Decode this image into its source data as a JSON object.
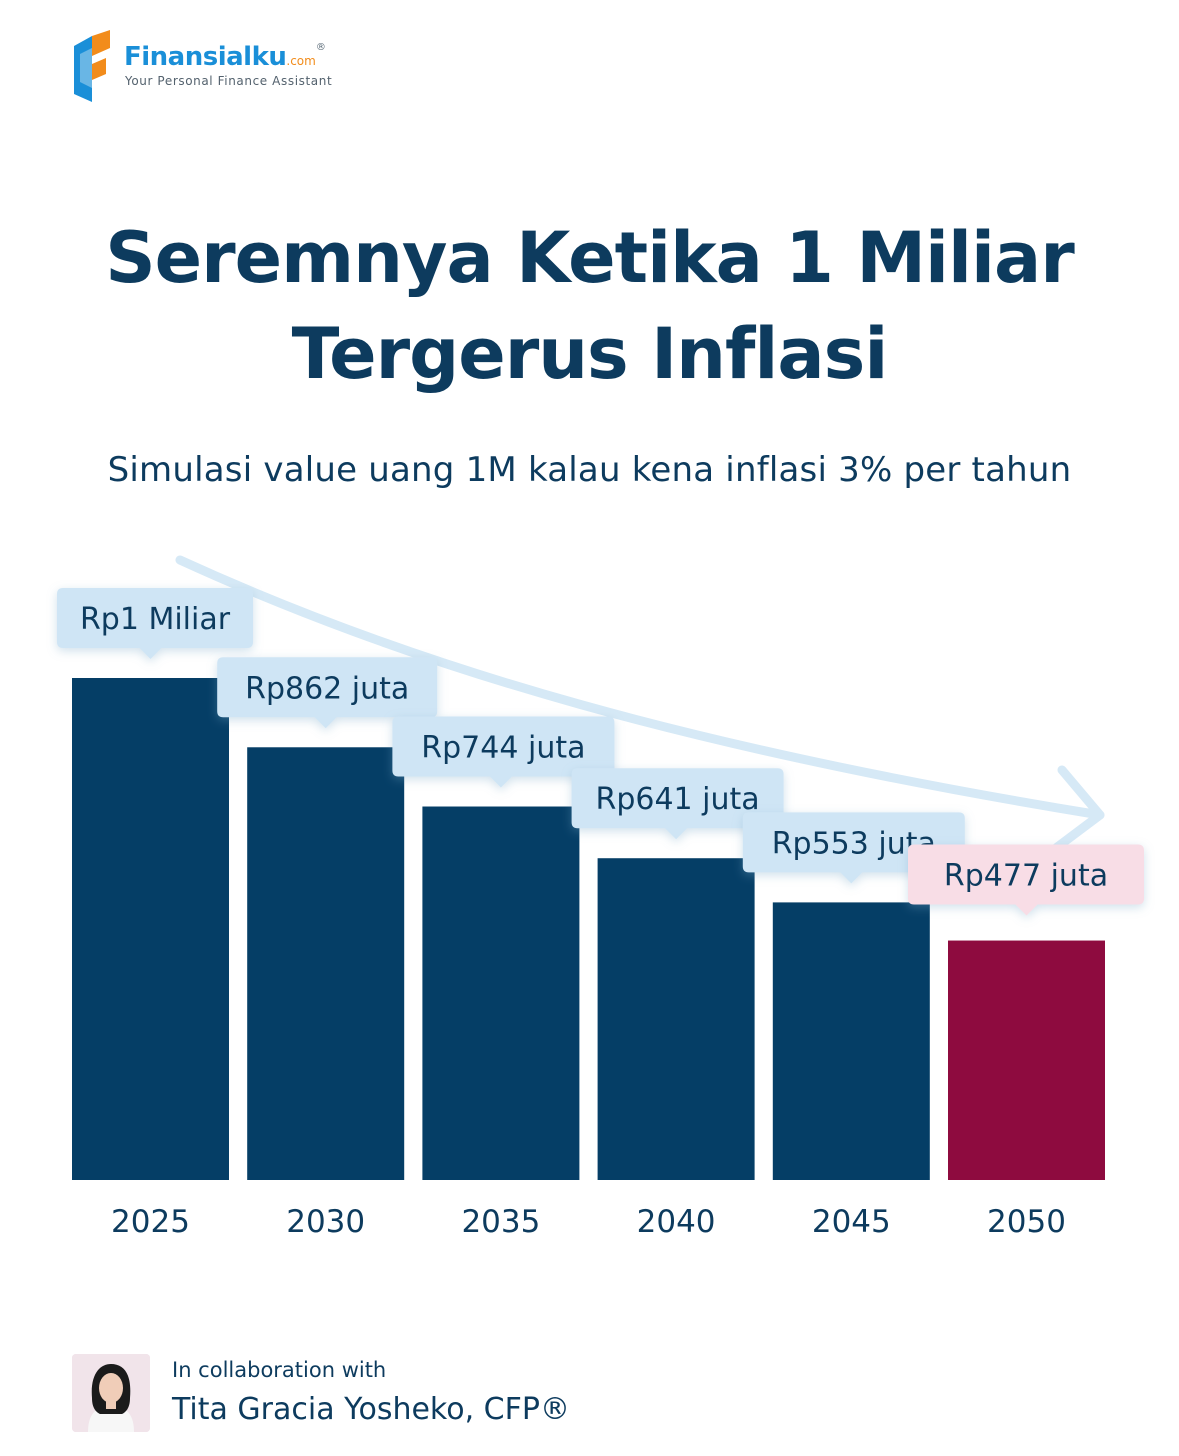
{
  "brand": {
    "name": "Finansialku",
    "suffix": ".com",
    "reg": "®",
    "tagline": "Your Personal Finance Assistant",
    "colors": {
      "blue": "#1a8fd8",
      "orange": "#f28c1b",
      "navy": "#0d3b5e"
    }
  },
  "title_lines": [
    "Seremnya Ketika 1 Miliar",
    "Tergerus Inflasi"
  ],
  "subtitle": "Simulasi value uang 1M kalau kena inflasi 3% per tahun",
  "chart_data": {
    "type": "bar",
    "categories": [
      "2025",
      "2030",
      "2035",
      "2040",
      "2045",
      "2050"
    ],
    "values": [
      1000,
      862,
      744,
      641,
      553,
      477
    ],
    "unit": "juta",
    "data_labels": [
      "Rp1 Miliar",
      "Rp862 juta",
      "Rp744 juta",
      "Rp641 juta",
      "Rp553 juta",
      "Rp477 juta"
    ],
    "highlight_index": 5,
    "colors": {
      "bar": "#053e66",
      "highlight": "#8e0b3f",
      "label_bg": "#cfe5f5",
      "highlight_label_bg": "#f8dde6",
      "trend_arrow": "#d6e9f6"
    },
    "grid": false,
    "legend": "none",
    "ylim": [
      0,
      1000
    ],
    "trend_arrow": true
  },
  "footer": {
    "collab_label": "In collaboration with",
    "collab_name": "Tita Gracia Yosheko, CFP®",
    "photo_icon": "person-portrait-icon"
  }
}
